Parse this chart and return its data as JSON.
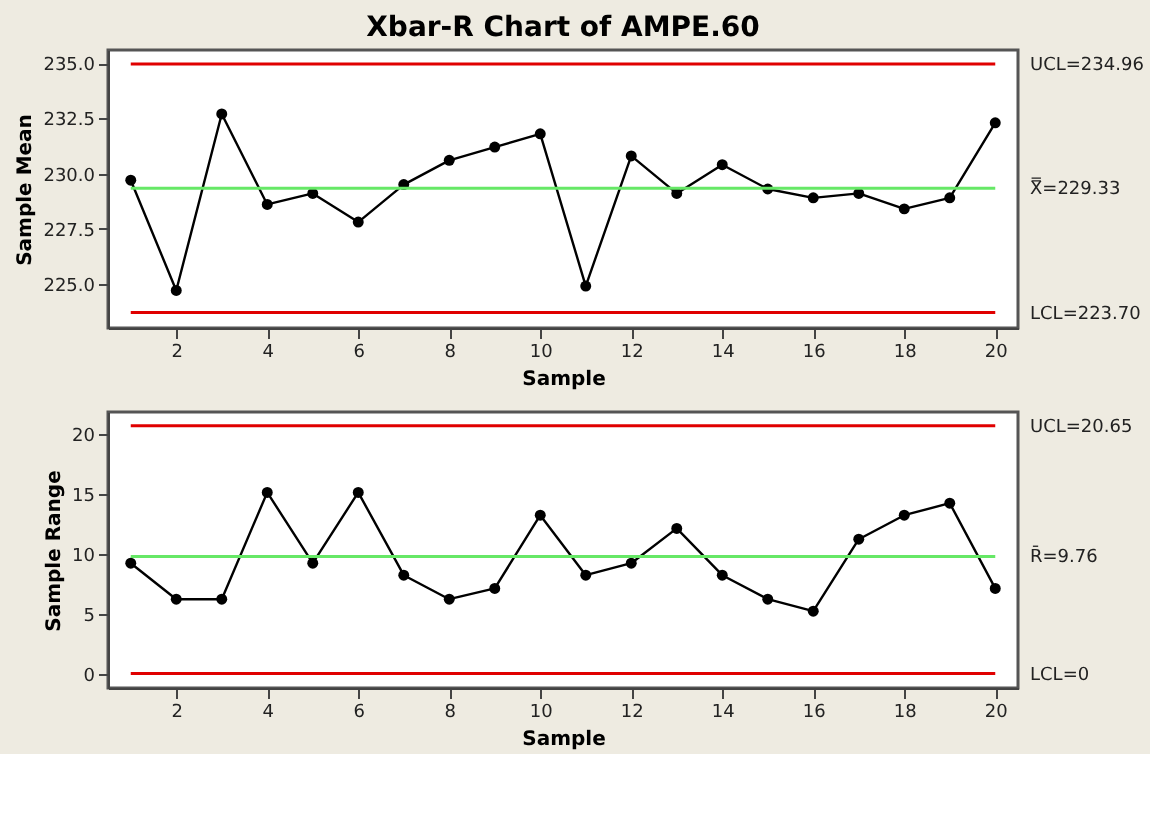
{
  "chart_data": [
    {
      "type": "line",
      "title": "Xbar-R Chart of AMPE.60",
      "xlabel": "Sample",
      "ylabel": "Sample Mean",
      "x": [
        1,
        2,
        3,
        4,
        5,
        6,
        7,
        8,
        9,
        10,
        11,
        12,
        13,
        14,
        15,
        16,
        17,
        18,
        19,
        20
      ],
      "series": [
        {
          "color": "#000000",
          "values": [
            229.7,
            224.7,
            232.7,
            228.6,
            229.1,
            227.8,
            229.5,
            230.6,
            231.2,
            231.8,
            224.9,
            230.8,
            229.1,
            230.4,
            229.3,
            228.9,
            229.1,
            228.4,
            228.9,
            232.3
          ]
        }
      ],
      "xlim": [
        0.5,
        20.5
      ],
      "xticks": [
        2,
        4,
        6,
        8,
        10,
        12,
        14,
        16,
        18,
        20
      ],
      "ylim": [
        223.0,
        235.6
      ],
      "yticks": [
        {
          "value": 225,
          "label": "225.0"
        },
        {
          "value": 227.5,
          "label": "227.5"
        },
        {
          "value": 230,
          "label": "230.0"
        },
        {
          "value": 232.5,
          "label": "232.5"
        },
        {
          "value": 235,
          "label": "235.0"
        }
      ],
      "ref_lines": [
        {
          "axis": "y",
          "value": 234.96,
          "label": "UCL=234.96",
          "color": "#e00000"
        },
        {
          "axis": "y",
          "value": 229.33,
          "label": "X̿=229.33",
          "color": "#66e866"
        },
        {
          "axis": "y",
          "value": 223.7,
          "label": "LCL=223.70",
          "color": "#e00000"
        }
      ],
      "grid": false,
      "marker": "circle",
      "line_style": "solid"
    },
    {
      "type": "line",
      "xlabel": "Sample",
      "ylabel": "Sample Range",
      "x": [
        1,
        2,
        3,
        4,
        5,
        6,
        7,
        8,
        9,
        10,
        11,
        12,
        13,
        14,
        15,
        16,
        17,
        18,
        19,
        20
      ],
      "series": [
        {
          "color": "#000000",
          "values": [
            9.2,
            6.2,
            6.2,
            15.1,
            9.2,
            15.1,
            8.2,
            6.2,
            7.1,
            13.2,
            8.2,
            9.2,
            12.1,
            8.2,
            6.2,
            5.2,
            11.2,
            13.2,
            14.2,
            7.1
          ]
        }
      ],
      "xlim": [
        0.5,
        20.5
      ],
      "xticks": [
        2,
        4,
        6,
        8,
        10,
        12,
        14,
        16,
        18,
        20
      ],
      "ylim": [
        -1.2,
        21.8
      ],
      "yticks": [
        0,
        5,
        10,
        15,
        20
      ],
      "ref_lines": [
        {
          "axis": "y",
          "value": 20.65,
          "label": "UCL=20.65",
          "color": "#e00000"
        },
        {
          "axis": "y",
          "value": 9.76,
          "label": "R̄=9.76",
          "color": "#66e866"
        },
        {
          "axis": "y",
          "value": 0,
          "label": "LCL=0",
          "color": "#e00000"
        }
      ],
      "grid": false,
      "marker": "circle",
      "line_style": "solid"
    }
  ]
}
